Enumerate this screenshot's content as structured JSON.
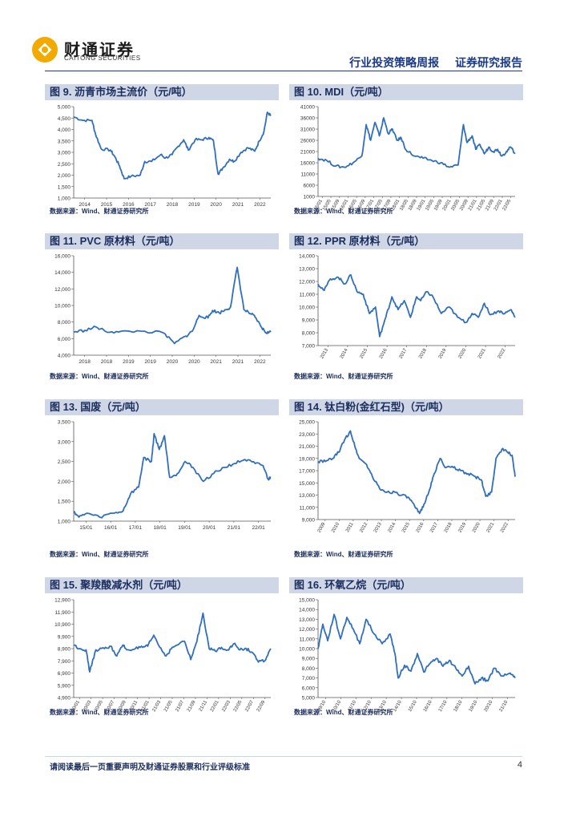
{
  "header": {
    "logo_cn": "财通证券",
    "logo_en": "CAITONG SECURITIES",
    "report_type": "行业投资策略周报",
    "report_category": "证券研究报告"
  },
  "footer": {
    "disclaimer": "请阅读最后一页重要声明及财通证券股票和行业评级标准",
    "page_number": "4"
  },
  "colors": {
    "line": "#2f6fbd",
    "title_bg": "#cfd6e6",
    "title_text": "#1b2d5e",
    "brand": "#1a3a86"
  },
  "source_note": "数据来源：Wind、财通证券研究所",
  "chart_data": [
    {
      "id": "c9",
      "type": "line",
      "title": "图 9. 沥青市场主流价（元/吨）",
      "ylim": [
        1000,
        5000
      ],
      "yticks": [
        "5,000",
        "4,500",
        "4,000",
        "3,500",
        "3,000",
        "2,500",
        "2,000",
        "1,500",
        "1,000"
      ],
      "xticks": [
        "2014",
        "2015",
        "2016",
        "2017",
        "2018",
        "2019",
        "2020",
        "2021",
        "2022"
      ],
      "x": [
        2014.0,
        2014.4,
        2014.8,
        2014.95,
        2015.2,
        2015.6,
        2015.8,
        2016.0,
        2016.2,
        2016.5,
        2016.9,
        2017.1,
        2017.4,
        2017.8,
        2018.0,
        2018.3,
        2018.5,
        2018.8,
        2019.0,
        2019.3,
        2019.6,
        2019.9,
        2020.1,
        2020.3,
        2020.5,
        2020.8,
        2021.0,
        2021.3,
        2021.6,
        2021.9,
        2022.1,
        2022.3,
        2022.45,
        2022.6
      ],
      "y": [
        4550,
        4400,
        4400,
        3800,
        3150,
        3100,
        2800,
        2400,
        1850,
        1950,
        2000,
        2600,
        2600,
        2900,
        2750,
        2900,
        3200,
        3550,
        3100,
        3550,
        3550,
        3650,
        3500,
        2050,
        2300,
        2700,
        2600,
        3000,
        3200,
        3050,
        3500,
        3900,
        4750,
        4600
      ]
    },
    {
      "id": "c10",
      "type": "line",
      "title": "图 10. MDI（元/吨）",
      "ylim": [
        1000,
        41000
      ],
      "yticks": [
        "41000",
        "36000",
        "31000",
        "26000",
        "21000",
        "16000",
        "11000",
        "6000",
        "1000"
      ],
      "xticks": [
        "15/01",
        "15/05",
        "15/09",
        "16/01",
        "16/05",
        "16/09",
        "17/01",
        "17/05",
        "17/09",
        "18/01",
        "18/05",
        "18/09",
        "19/01",
        "19/05",
        "19/09",
        "20/01",
        "20/05",
        "20/09",
        "21/01",
        "21/05",
        "21/09",
        "22/01",
        "22/05"
      ],
      "x": [
        0,
        1,
        2,
        3,
        4,
        5,
        5.5,
        6,
        6.5,
        7,
        7.5,
        8,
        8.5,
        9,
        9.5,
        10,
        11,
        12,
        13,
        14,
        15,
        16,
        16.6,
        17,
        17.6,
        18,
        18.5,
        19,
        19.5,
        20,
        20.5,
        21,
        21.5,
        22,
        22.5
      ],
      "y": [
        18000,
        17000,
        14500,
        14000,
        16000,
        19000,
        33000,
        26000,
        34000,
        28000,
        36000,
        29000,
        31000,
        26000,
        27000,
        22000,
        19000,
        18000,
        17000,
        16000,
        14000,
        15000,
        33000,
        25000,
        28000,
        22000,
        24000,
        20000,
        23000,
        21000,
        22000,
        19000,
        21000,
        23000,
        20000
      ]
    },
    {
      "id": "c11",
      "type": "line",
      "title": "图 11. PVC 原材料（元/吨）",
      "ylim": [
        4000,
        16000
      ],
      "yticks": [
        "16,000",
        "14,000",
        "12,000",
        "10,000",
        "8,000",
        "6,000",
        "4,000"
      ],
      "xticks": [
        "2018",
        "2018",
        "2019",
        "2019",
        "2020",
        "2020",
        "2021",
        "2021",
        "2022"
      ],
      "x": [
        0,
        0.5,
        1,
        1.4,
        2,
        3,
        4,
        4.5,
        5,
        5.3,
        5.6,
        6,
        6.2,
        6.5,
        6.8,
        7.0,
        7.3,
        7.6,
        7.9,
        8.1,
        8.4,
        8.6,
        8.8
      ],
      "y": [
        6800,
        7000,
        7400,
        6900,
        6800,
        6900,
        6700,
        5400,
        6300,
        6900,
        8800,
        8500,
        9400,
        9100,
        9500,
        9800,
        14600,
        9500,
        9000,
        8600,
        7300,
        6700,
        6800
      ]
    },
    {
      "id": "c12",
      "type": "line",
      "title": "图 12. PPR 原材料（元/吨）",
      "ylim": [
        7000,
        14000
      ],
      "yticks": [
        "14,000",
        "13,000",
        "12,000",
        "11,000",
        "10,000",
        "9,000",
        "8,000",
        "7,000"
      ],
      "xticks": [
        "2013",
        "2014",
        "2015",
        "2016",
        "2017",
        "2018",
        "2019",
        "2020",
        "2021",
        "2022"
      ],
      "x": [
        2013.0,
        2013.3,
        2013.6,
        2014.0,
        2014.3,
        2014.6,
        2014.9,
        2015.2,
        2015.5,
        2015.8,
        2016.0,
        2016.3,
        2016.6,
        2016.9,
        2017.2,
        2017.5,
        2017.8,
        2018.0,
        2018.3,
        2018.6,
        2019.0,
        2019.4,
        2019.8,
        2020.2,
        2020.5,
        2020.8,
        2021.1,
        2021.4,
        2021.8,
        2022.1,
        2022.4,
        2022.6
      ],
      "y": [
        11800,
        11300,
        12200,
        12300,
        11800,
        12500,
        11200,
        11000,
        9500,
        10000,
        7700,
        9200,
        10800,
        9800,
        10500,
        9200,
        10800,
        10500,
        11200,
        10800,
        9500,
        10000,
        9200,
        8800,
        9500,
        9200,
        10300,
        9400,
        9700,
        9500,
        9800,
        9200
      ]
    },
    {
      "id": "c13",
      "type": "line",
      "title": "图 13. 国废（元/吨）",
      "ylim": [
        1000,
        3500
      ],
      "yticks": [
        "3,500",
        "3,000",
        "2,500",
        "2,000",
        "1,500",
        "1,000"
      ],
      "xticks": [
        "15/01",
        "16/01",
        "17/01",
        "18/01",
        "19/01",
        "20/01",
        "21/01",
        "22/01"
      ],
      "x": [
        0,
        0.2,
        0.5,
        1,
        1.5,
        1.9,
        2.2,
        2.5,
        2.7,
        3.0,
        3.1,
        3.3,
        3.5,
        3.7,
        4.0,
        4.3,
        4.6,
        5.0,
        5.4,
        5.8,
        6.2,
        6.6,
        7.0,
        7.3,
        7.5,
        7.6
      ],
      "y": [
        1250,
        1100,
        1200,
        1100,
        1200,
        1250,
        1700,
        1850,
        2600,
        2500,
        3200,
        2800,
        3150,
        2100,
        2200,
        2500,
        2350,
        2000,
        2200,
        2350,
        2450,
        2550,
        2450,
        2400,
        2050,
        2100
      ]
    },
    {
      "id": "c14",
      "type": "line",
      "title": "图 14. 钛白粉(金红石型)（元/吨）",
      "ylim": [
        9000,
        25000
      ],
      "yticks": [
        "25,000",
        "23,000",
        "21,000",
        "19,000",
        "17,000",
        "15,000",
        "13,000",
        "11,000",
        "9,000"
      ],
      "xticks": [
        "2009",
        "2010",
        "2011",
        "2012",
        "2013",
        "2014",
        "2015",
        "2016",
        "2017",
        "2018",
        "2019",
        "2020",
        "2021",
        "2022"
      ],
      "x": [
        2009.0,
        2009.5,
        2010.0,
        2010.4,
        2010.8,
        2011.2,
        2011.5,
        2011.8,
        2012.3,
        2012.7,
        2013.2,
        2013.7,
        2014.2,
        2014.7,
        2015.2,
        2015.6,
        2015.9,
        2016.2,
        2016.6,
        2016.9,
        2017.3,
        2017.7,
        2018.2,
        2018.7,
        2019.2,
        2019.7,
        2020.1,
        2020.4,
        2020.8,
        2021.1,
        2021.5,
        2021.9,
        2022.2,
        2022.4
      ],
      "y": [
        18500,
        18500,
        19000,
        20000,
        22000,
        23500,
        21000,
        19000,
        18000,
        16000,
        14000,
        13500,
        13500,
        13000,
        12500,
        11000,
        10000,
        11500,
        14000,
        16500,
        19000,
        17500,
        17500,
        17000,
        16500,
        16000,
        15500,
        12800,
        13500,
        19000,
        20500,
        20000,
        19500,
        16000
      ]
    },
    {
      "id": "c15",
      "type": "line",
      "title": "图 15. 聚羧酸减水剂（元/吨）",
      "ylim": [
        4900,
        12900
      ],
      "yticks": [
        "12,900",
        "11,900",
        "10,900",
        "9,900",
        "8,900",
        "7,900",
        "6,900",
        "5,900",
        "4,900"
      ],
      "xticks": [
        "20/01",
        "20/03",
        "20/05",
        "20/07",
        "20/09",
        "20/11",
        "21/01",
        "21/03",
        "21/05",
        "21/07",
        "21/09",
        "21/11",
        "22/01",
        "22/03",
        "22/05",
        "22/07",
        "22/09"
      ],
      "x": [
        0,
        0.5,
        1,
        1.3,
        1.8,
        2.5,
        3,
        3.5,
        4,
        4.3,
        5,
        5.6,
        6,
        6.5,
        7,
        7.5,
        8,
        9,
        9.5,
        10,
        10.5,
        11,
        11.5,
        12,
        12.5,
        13,
        13.5,
        14,
        14.5,
        15,
        15.5,
        16
      ],
      "y": [
        9200,
        8900,
        8800,
        7000,
        8800,
        8900,
        9100,
        8300,
        9200,
        8800,
        8900,
        9000,
        9100,
        10000,
        9000,
        8300,
        9000,
        9500,
        8000,
        9500,
        11800,
        8900,
        8700,
        9000,
        8800,
        9300,
        8800,
        8900,
        8600,
        7800,
        7900,
        8900
      ]
    },
    {
      "id": "c16",
      "type": "line",
      "title": "图 16. 环氧乙烷（元/吨）",
      "ylim": [
        5000,
        15000
      ],
      "yticks": [
        "15,000",
        "14,000",
        "13,000",
        "12,000",
        "11,000",
        "10,000",
        "9,000",
        "8,000",
        "7,000",
        "6,000",
        "5,000"
      ],
      "xticks": [
        "09/10",
        "10/10",
        "11/10",
        "12/10",
        "13/10",
        "14/10",
        "15/10",
        "16/10",
        "17/10",
        "18/10",
        "19/10",
        "20/10",
        "21/10"
      ],
      "x": [
        0,
        0.3,
        0.6,
        1,
        1.4,
        1.8,
        2.2,
        2.6,
        3,
        3.5,
        4,
        4.5,
        4.8,
        5,
        5.4,
        5.8,
        6.2,
        6.6,
        7,
        7.4,
        7.8,
        8.2,
        8.6,
        9,
        9.4,
        9.8,
        10.2,
        10.6,
        11,
        11.5,
        12,
        12.3
      ],
      "y": [
        10000,
        12500,
        10800,
        13500,
        11000,
        13200,
        12000,
        10500,
        13000,
        11500,
        10500,
        11500,
        9500,
        7000,
        8300,
        7700,
        9500,
        7600,
        8500,
        9000,
        8200,
        8800,
        8000,
        7200,
        8200,
        6400,
        7000,
        6700,
        8000,
        7200,
        7500,
        7000
      ]
    }
  ]
}
